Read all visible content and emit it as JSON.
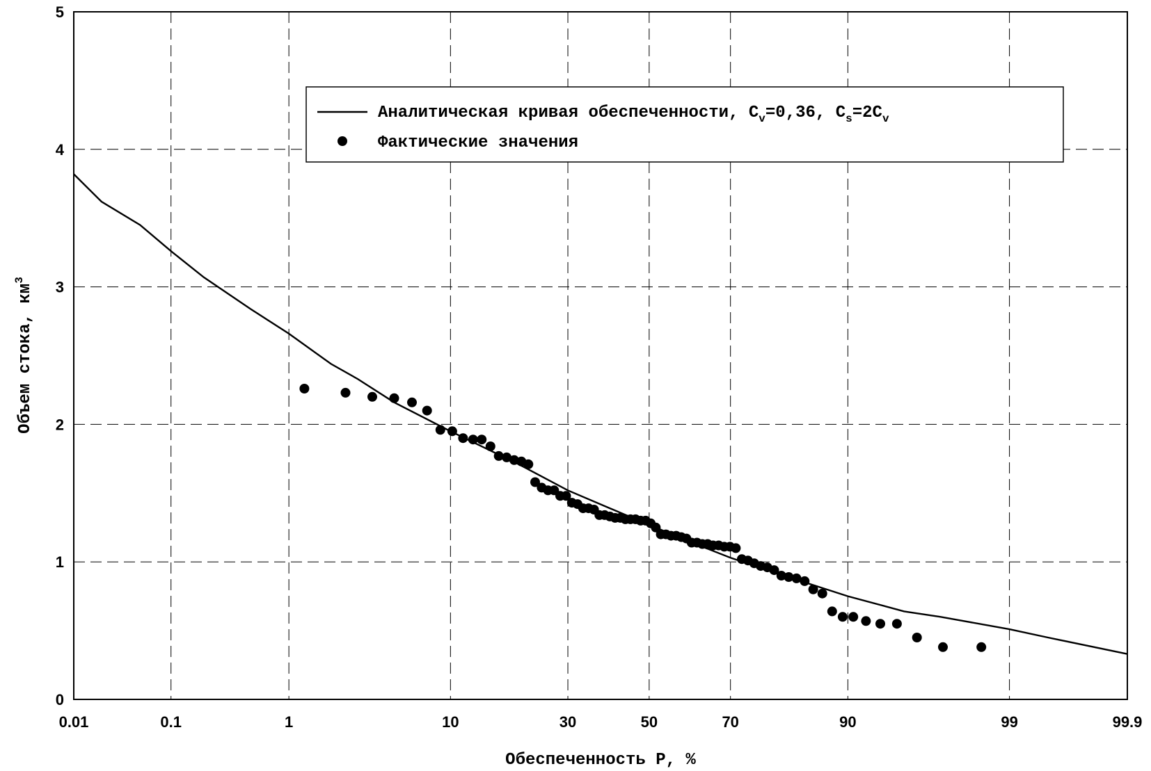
{
  "chart_data": {
    "type": "scatter",
    "xscale": "probability",
    "xlabel": "Обеспеченность P, %",
    "ylabel": "Объем стока, км",
    "ylabel_sup": "3",
    "x_ticks": [
      {
        "value": 0.01,
        "label": "0.01"
      },
      {
        "value": 0.1,
        "label": "0.1"
      },
      {
        "value": 1,
        "label": "1"
      },
      {
        "value": 10,
        "label": "10"
      },
      {
        "value": 30,
        "label": "30"
      },
      {
        "value": 50,
        "label": "50"
      },
      {
        "value": 70,
        "label": "70"
      },
      {
        "value": 90,
        "label": "90"
      },
      {
        "value": 99,
        "label": "99"
      },
      {
        "value": 99.9,
        "label": "99.9"
      }
    ],
    "xlim": [
      0.01,
      99.9
    ],
    "y_ticks": [
      {
        "value": 0,
        "label": "0"
      },
      {
        "value": 1,
        "label": "1"
      },
      {
        "value": 2,
        "label": "2"
      },
      {
        "value": 3,
        "label": "3"
      },
      {
        "value": 4,
        "label": "4"
      },
      {
        "value": 5,
        "label": "5"
      }
    ],
    "ylim": [
      0,
      5
    ],
    "grid": true,
    "legend_position": "top-right",
    "legend": {
      "curve_label": "Аналитическая кривая обеспеченности, C",
      "curve_cv_sub": "v",
      "curve_mid": "=0,36, C",
      "curve_cs_sub": "s",
      "curve_end": "=2C",
      "curve_end_sub": "v",
      "points_label": "Фактические значения"
    },
    "series": [
      {
        "name": "Аналитическая кривая обеспеченности",
        "type": "line",
        "x": [
          0.01,
          0.02,
          0.05,
          0.1,
          0.2,
          0.5,
          1,
          2,
          3,
          5,
          10,
          20,
          30,
          40,
          50,
          60,
          70,
          80,
          90,
          95,
          97,
          99,
          99.5,
          99.9
        ],
        "y": [
          3.82,
          3.62,
          3.45,
          3.26,
          3.07,
          2.84,
          2.66,
          2.44,
          2.33,
          2.16,
          1.95,
          1.71,
          1.52,
          1.39,
          1.27,
          1.15,
          1.03,
          0.91,
          0.75,
          0.64,
          0.6,
          0.51,
          0.45,
          0.33
        ]
      },
      {
        "name": "Фактические значения",
        "type": "scatter",
        "x": [
          1.3,
          2.5,
          3.7,
          5,
          6.3,
          7.6,
          8.9,
          10.2,
          11.5,
          12.8,
          14,
          15.3,
          16.6,
          17.9,
          19.2,
          20.5,
          21.8,
          23.1,
          24.4,
          25.7,
          27,
          28.3,
          29.6,
          30.9,
          32.2,
          33.5,
          34.8,
          36.1,
          37.4,
          38.7,
          40,
          41.3,
          42.6,
          43.9,
          45.2,
          46.5,
          47.8,
          49.1,
          50.4,
          51.7,
          53,
          54.3,
          55.6,
          56.9,
          58.2,
          59.5,
          60.8,
          62.1,
          63.4,
          64.7,
          66,
          67.3,
          68.6,
          69.9,
          71.2,
          72.5,
          73.8,
          75.1,
          76.4,
          77.7,
          79,
          80.3,
          81.6,
          82.9,
          84.2,
          85.5,
          86.8,
          88.1,
          89.4,
          90.6,
          91.9,
          93.2,
          94.5,
          95.8,
          97.1,
          98.4
        ],
        "y": [
          2.26,
          2.23,
          2.2,
          2.19,
          2.16,
          2.1,
          1.96,
          1.95,
          1.9,
          1.89,
          1.89,
          1.84,
          1.77,
          1.76,
          1.74,
          1.73,
          1.71,
          1.58,
          1.54,
          1.52,
          1.52,
          1.48,
          1.48,
          1.43,
          1.42,
          1.39,
          1.39,
          1.38,
          1.34,
          1.34,
          1.33,
          1.32,
          1.32,
          1.31,
          1.31,
          1.31,
          1.3,
          1.3,
          1.28,
          1.25,
          1.2,
          1.2,
          1.19,
          1.19,
          1.18,
          1.17,
          1.14,
          1.14,
          1.13,
          1.13,
          1.12,
          1.12,
          1.11,
          1.11,
          1.1,
          1.02,
          1.01,
          0.99,
          0.97,
          0.96,
          0.94,
          0.9,
          0.89,
          0.88,
          0.86,
          0.8,
          0.77,
          0.64,
          0.6,
          0.6,
          0.57,
          0.55,
          0.55,
          0.45,
          0.38,
          0.38
        ]
      }
    ]
  }
}
